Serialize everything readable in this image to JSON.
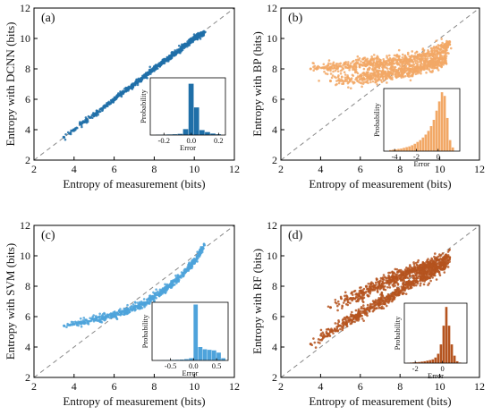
{
  "chart_data": [
    {
      "type": "scatter",
      "panel_label": "(a)",
      "xlabel": "Entropy of measurement (bits)",
      "ylabel": "Entropy with DCNN (bits)",
      "xlim": [
        2,
        12
      ],
      "ylim": [
        2,
        12
      ],
      "xticks": [
        2,
        4,
        6,
        8,
        10,
        12
      ],
      "yticks": [
        2,
        4,
        6,
        8,
        10,
        12
      ],
      "color": "#1f6fa8",
      "identity_line": true,
      "series": [
        {
          "x": [
            3.5,
            4.0,
            4.5,
            5.0,
            5.5,
            6.0,
            6.5,
            7.0,
            7.5,
            8.0,
            8.5,
            9.0,
            9.5,
            10.0,
            10.5
          ],
          "y": [
            3.5,
            4.0,
            4.5,
            5.0,
            5.5,
            6.0,
            6.5,
            7.0,
            7.5,
            8.0,
            8.5,
            9.0,
            9.5,
            10.0,
            10.4
          ]
        }
      ],
      "inset": {
        "type": "histogram",
        "xlabel": "Error",
        "ylabel": "Probability",
        "xlim": [
          -0.3,
          0.25
        ],
        "xticks": [
          -0.2,
          0.0,
          0.2
        ],
        "xtick_labels": [
          "-0.2",
          "0.0",
          "0.2"
        ],
        "bin_width": 0.04,
        "bins": [
          -0.26,
          -0.22,
          -0.18,
          -0.14,
          -0.1,
          -0.06,
          -0.02,
          0.02,
          0.06,
          0.1,
          0.14,
          0.18
        ],
        "values": [
          0.003,
          0.004,
          0.006,
          0.008,
          0.012,
          0.06,
          0.52,
          0.28,
          0.05,
          0.03,
          0.015,
          0.008
        ],
        "ylim": [
          0,
          0.58
        ]
      }
    },
    {
      "type": "scatter",
      "panel_label": "(b)",
      "xlabel": "Entropy of measurement (bits)",
      "ylabel": "Entropy with BP (bits)",
      "xlim": [
        2,
        12
      ],
      "ylim": [
        2,
        12
      ],
      "xticks": [
        2,
        4,
        6,
        8,
        10,
        12
      ],
      "yticks": [
        2,
        4,
        6,
        8,
        10,
        12
      ],
      "color": "#f2a866",
      "identity_line": true,
      "series": [
        {
          "x": [
            3.5,
            4.5,
            5.5,
            6.5,
            7.5,
            8.5,
            9.5,
            10.5
          ],
          "y": [
            8.0,
            8.1,
            8.2,
            8.3,
            8.4,
            8.6,
            8.9,
            9.6
          ]
        },
        {
          "x": [
            4.5,
            5.5,
            6.5,
            7.5,
            8.5,
            9.5,
            10.3
          ],
          "y": [
            7.2,
            7.3,
            7.5,
            7.7,
            7.9,
            8.2,
            8.7
          ]
        }
      ],
      "inset": {
        "type": "histogram",
        "xlabel": "Error",
        "ylabel": "Probability",
        "xlim": [
          -5,
          2
        ],
        "xticks": [
          -4,
          -2,
          0
        ],
        "xtick_labels": [
          "-4",
          "-2",
          "0"
        ],
        "bin_width": 0.25,
        "bins": [
          -4.5,
          -4.25,
          -4.0,
          -3.75,
          -3.5,
          -3.25,
          -3.0,
          -2.75,
          -2.5,
          -2.25,
          -2.0,
          -1.75,
          -1.5,
          -1.25,
          -1.0,
          -0.75,
          -0.5,
          -0.25,
          0.0,
          0.25,
          0.5,
          0.75,
          1.0,
          1.25
        ],
        "values": [
          0.003,
          0.004,
          0.005,
          0.006,
          0.007,
          0.009,
          0.011,
          0.013,
          0.016,
          0.02,
          0.025,
          0.03,
          0.037,
          0.045,
          0.055,
          0.068,
          0.085,
          0.11,
          0.135,
          0.16,
          0.15,
          0.09,
          0.03,
          0.01
        ],
        "ylim": [
          0,
          0.17
        ]
      }
    },
    {
      "type": "scatter",
      "panel_label": "(c)",
      "xlabel": "Entropy of measurement (bits)",
      "ylabel": "Entropy with SVM (bits)",
      "xlim": [
        2,
        12
      ],
      "ylim": [
        2,
        12
      ],
      "xticks": [
        2,
        4,
        6,
        8,
        10,
        12
      ],
      "yticks": [
        2,
        4,
        6,
        8,
        10,
        12
      ],
      "color": "#4ea3db",
      "identity_line": true,
      "series": [
        {
          "x": [
            3.5,
            4.0,
            4.5,
            5.0,
            5.5,
            6.0,
            6.5,
            7.0,
            7.5,
            8.0,
            8.5,
            9.0,
            9.5,
            10.0,
            10.5
          ],
          "y": [
            5.4,
            5.5,
            5.65,
            5.8,
            5.95,
            6.1,
            6.3,
            6.6,
            6.9,
            7.3,
            7.75,
            8.3,
            8.9,
            9.6,
            10.7
          ]
        }
      ],
      "inset": {
        "type": "histogram",
        "xlabel": "Error",
        "ylabel": "Probability",
        "xlim": [
          -0.9,
          0.75
        ],
        "xticks": [
          -0.5,
          0.0,
          0.5
        ],
        "xtick_labels": [
          "-0.5",
          "0.0",
          "0.5"
        ],
        "bin_width": 0.1,
        "bins": [
          -0.8,
          -0.7,
          -0.6,
          -0.5,
          -0.4,
          -0.3,
          -0.2,
          -0.1,
          0.0,
          0.1,
          0.2,
          0.3,
          0.4,
          0.5,
          0.6
        ],
        "values": [
          0.002,
          0.003,
          0.004,
          0.005,
          0.006,
          0.008,
          0.012,
          0.02,
          0.5,
          0.12,
          0.1,
          0.095,
          0.09,
          0.07,
          0.02
        ],
        "ylim": [
          0,
          0.52
        ]
      }
    },
    {
      "type": "scatter",
      "panel_label": "(d)",
      "xlabel": "Entropy of measurement (bits)",
      "ylabel": "Entropy with RF (bits)",
      "xlim": [
        2,
        12
      ],
      "ylim": [
        2,
        12
      ],
      "xticks": [
        2,
        4,
        6,
        8,
        10,
        12
      ],
      "yticks": [
        2,
        4,
        6,
        8,
        10,
        12
      ],
      "color": "#b5541f",
      "identity_line": true,
      "series": [
        {
          "x": [
            4.5,
            5.5,
            6.5,
            7.5,
            8.5,
            9.5,
            10.5
          ],
          "y": [
            6.6,
            7.2,
            7.8,
            8.4,
            8.9,
            9.4,
            9.9
          ]
        },
        {
          "x": [
            3.5,
            4.5,
            5.5,
            6.5,
            7.5,
            8.5,
            9.5,
            10.3
          ],
          "y": [
            4.2,
            5.0,
            5.8,
            6.6,
            7.3,
            8.1,
            8.8,
            9.4
          ]
        }
      ],
      "inset": {
        "type": "histogram",
        "xlabel": "Error",
        "ylabel": "Probability",
        "xlim": [
          -2.8,
          1.8
        ],
        "xticks": [
          -2,
          0
        ],
        "xtick_labels": [
          "-2",
          "0"
        ],
        "bin_width": 0.2,
        "bins": [
          -2.6,
          -2.4,
          -2.2,
          -2.0,
          -1.8,
          -1.6,
          -1.4,
          -1.2,
          -1.0,
          -0.8,
          -0.6,
          -0.4,
          -0.2,
          0.0,
          0.2,
          0.4,
          0.6,
          0.8,
          1.0,
          1.2
        ],
        "values": [
          0.002,
          0.003,
          0.004,
          0.005,
          0.006,
          0.008,
          0.01,
          0.013,
          0.016,
          0.02,
          0.03,
          0.05,
          0.1,
          0.2,
          0.3,
          0.2,
          0.1,
          0.04,
          0.01,
          0.003
        ],
        "ylim": [
          0,
          0.32
        ]
      }
    }
  ]
}
